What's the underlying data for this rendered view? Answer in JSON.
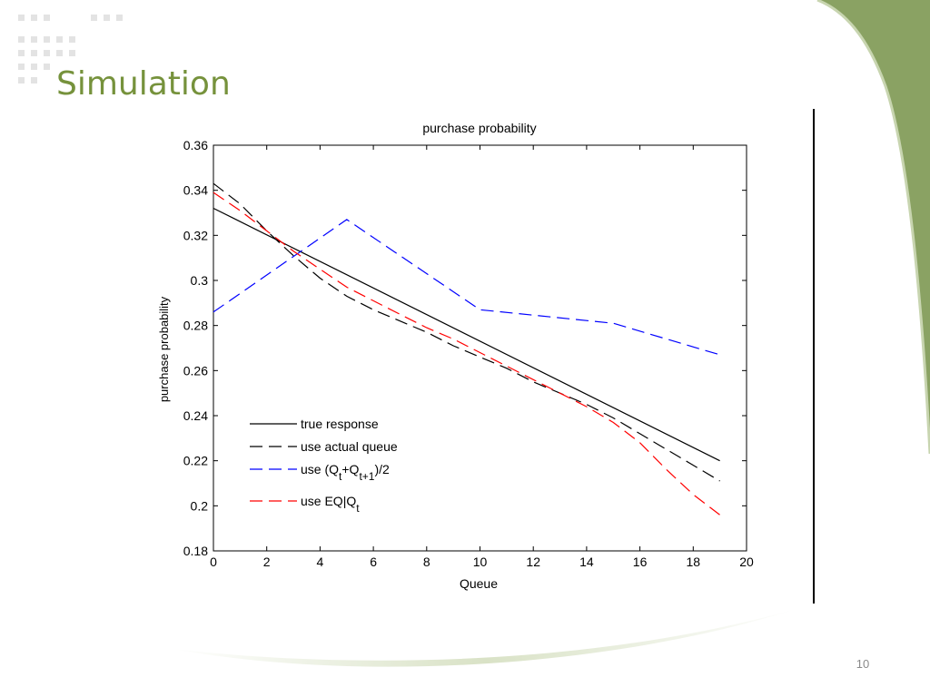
{
  "slide": {
    "title": "Simulation",
    "page_number": "10",
    "accent_color": "#8aa263"
  },
  "chart_data": {
    "type": "line",
    "title": "purchase probability",
    "xlabel": "Queue",
    "ylabel": "purchase probability",
    "xlim": [
      0,
      20
    ],
    "ylim": [
      0.18,
      0.36
    ],
    "xticks": [
      0,
      2,
      4,
      6,
      8,
      10,
      12,
      14,
      16,
      18,
      20
    ],
    "yticks": [
      0.18,
      0.2,
      0.22,
      0.24,
      0.26,
      0.28,
      0.3,
      0.32,
      0.34,
      0.36
    ],
    "ytick_labels": [
      "0.18",
      "0.2",
      "0.22",
      "0.24",
      "0.26",
      "0.28",
      "0.3",
      "0.32",
      "0.34",
      "0.36"
    ],
    "grid": false,
    "legend_position": "bottom-left",
    "series": [
      {
        "name": "true response",
        "color": "#000000",
        "dash": "solid",
        "x": [
          0,
          19
        ],
        "y": [
          0.332,
          0.22
        ]
      },
      {
        "name": "use actual queue",
        "color": "#000000",
        "dash": "dashed",
        "x": [
          0,
          1,
          2,
          3,
          4,
          5,
          6,
          7,
          8,
          9,
          10,
          11,
          12,
          13,
          14,
          15,
          16,
          17,
          18,
          19
        ],
        "y": [
          0.343,
          0.334,
          0.322,
          0.311,
          0.301,
          0.293,
          0.287,
          0.282,
          0.277,
          0.271,
          0.266,
          0.261,
          0.255,
          0.25,
          0.245,
          0.239,
          0.232,
          0.225,
          0.218,
          0.211
        ]
      },
      {
        "name_parts": [
          "use (Q",
          "t",
          "+Q",
          "t+1",
          ")/2"
        ],
        "color": "#0000ff",
        "dash": "dashed",
        "x": [
          0,
          5,
          10,
          15,
          19
        ],
        "y": [
          0.286,
          0.327,
          0.287,
          0.281,
          0.267
        ]
      },
      {
        "name_parts": [
          "use EQ|Q",
          "t"
        ],
        "color": "#ff0000",
        "dash": "dashed",
        "x": [
          0,
          1,
          2,
          3,
          4,
          5,
          6,
          7,
          8,
          9,
          10,
          11,
          12,
          13,
          14,
          15,
          16,
          17,
          18,
          19
        ],
        "y": [
          0.339,
          0.331,
          0.322,
          0.313,
          0.305,
          0.297,
          0.291,
          0.285,
          0.279,
          0.274,
          0.268,
          0.262,
          0.256,
          0.25,
          0.244,
          0.237,
          0.228,
          0.216,
          0.205,
          0.196
        ]
      }
    ]
  }
}
